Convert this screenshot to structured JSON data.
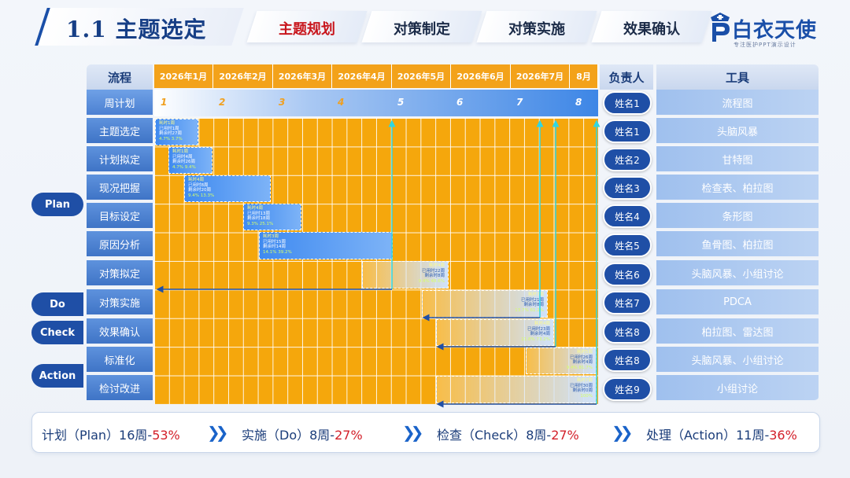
{
  "header": {
    "title": "1.1 主题选定",
    "tabs": [
      {
        "label": "主题规划",
        "active": true
      },
      {
        "label": "对策制定",
        "active": false
      },
      {
        "label": "对策实施",
        "active": false
      },
      {
        "label": "效果确认",
        "active": false
      }
    ],
    "logo": {
      "name": "白衣天使",
      "tagline": "专注医护PPT演示设计"
    }
  },
  "table": {
    "flow_header": "流程",
    "owner_header": "负责人",
    "tool_header": "工具",
    "months": [
      "2026年1月",
      "2026年2月",
      "2026年3月",
      "2026年4月",
      "2026年5月",
      "2026年6月",
      "2026年7月",
      "8月"
    ],
    "week_label": "周计划",
    "weeks": [
      "1",
      "2",
      "3",
      "4",
      "5",
      "6",
      "7",
      "8"
    ],
    "rows": [
      {
        "step": "主题选定",
        "owner": "姓名1",
        "tool": "头脑风暴"
      },
      {
        "step": "计划拟定",
        "owner": "姓名2",
        "tool": "甘特图"
      },
      {
        "step": "现况把握",
        "owner": "姓名3",
        "tool": "检查表、柏拉图"
      },
      {
        "step": "目标设定",
        "owner": "姓名4",
        "tool": "条形图"
      },
      {
        "step": "原因分析",
        "owner": "姓名5",
        "tool": "鱼骨图、柏拉图"
      },
      {
        "step": "对策拟定",
        "owner": "姓名6",
        "tool": "头脑风暴、小组讨论"
      },
      {
        "step": "对策实施",
        "owner": "姓名7",
        "tool": "PDCA"
      },
      {
        "step": "效果确认",
        "owner": "姓名8",
        "tool": "柏拉图、雷达图"
      },
      {
        "step": "标准化",
        "owner": "姓名8",
        "tool": "头脑风暴、小组讨论"
      },
      {
        "step": "检讨改进",
        "owner": "姓名9",
        "tool": "小组讨论"
      }
    ],
    "week_row": {
      "owner": "姓名1",
      "tool": "流程图"
    },
    "phases": [
      "Plan",
      "Do",
      "Check",
      "Action"
    ]
  },
  "tasks": [
    {
      "l1": "耗时1周",
      "l2": "已用时1周",
      "l3": "剩余时27周",
      "pct": "4.7%   3.7%",
      "style": "plan"
    },
    {
      "l1": "耗时1周",
      "l2": "已用时4周",
      "l3": "剩余时26周",
      "pct": "4.7%   9.4%",
      "style": "plan"
    },
    {
      "l1": "耗时4周",
      "l2": "已用时8周",
      "l3": "剩余时20周",
      "pct": "9.4%   13.3%",
      "style": "plan"
    },
    {
      "l1": "耗时4周",
      "l2": "已用时13周",
      "l3": "剩余时18周",
      "pct": "9.3%   25.1%",
      "style": "plan"
    },
    {
      "l1": "耗时3周",
      "l2": "已用时15周",
      "l3": "剩余时14周",
      "pct": "14.1%   39.2%",
      "style": "plan"
    },
    {
      "l1": "耗时4周",
      "l2": "已用时22周",
      "l3": "剩余时8周",
      "pct": "9.4%   48.6%",
      "style": "fade"
    },
    {
      "l1": "耗时7周",
      "l2": "已用时21周",
      "l3": "剩余时8周",
      "pct": "13.7%   61.2%",
      "style": "fade"
    },
    {
      "l1": "耗时4周",
      "l2": "已用时23周",
      "l3": "剩余时4周",
      "pct": "11.8%   73.2%",
      "style": "fade"
    },
    {
      "l1": "耗时5周",
      "l2": "已用时26周",
      "l3": "剩余时4周",
      "pct": "9.4%   81.7%",
      "style": "fade"
    },
    {
      "l1": "耗时7周",
      "l2": "已用时30周",
      "l3": "剩余时0周",
      "pct": "100%",
      "style": "fade"
    }
  ],
  "footer": {
    "items": [
      {
        "label": "计划（Plan）16周-",
        "pct": "53%"
      },
      {
        "label": "实施（Do）8周-",
        "pct": "27%"
      },
      {
        "label": "检查（Check）8周-",
        "pct": "27%"
      },
      {
        "label": "处理（Action）11周-",
        "pct": "36%"
      }
    ]
  },
  "colors": {
    "grid": "#f5a70c",
    "accent": "#1f4fa6",
    "highlight": "#d3202a",
    "arrow": "#2fd6e2"
  }
}
